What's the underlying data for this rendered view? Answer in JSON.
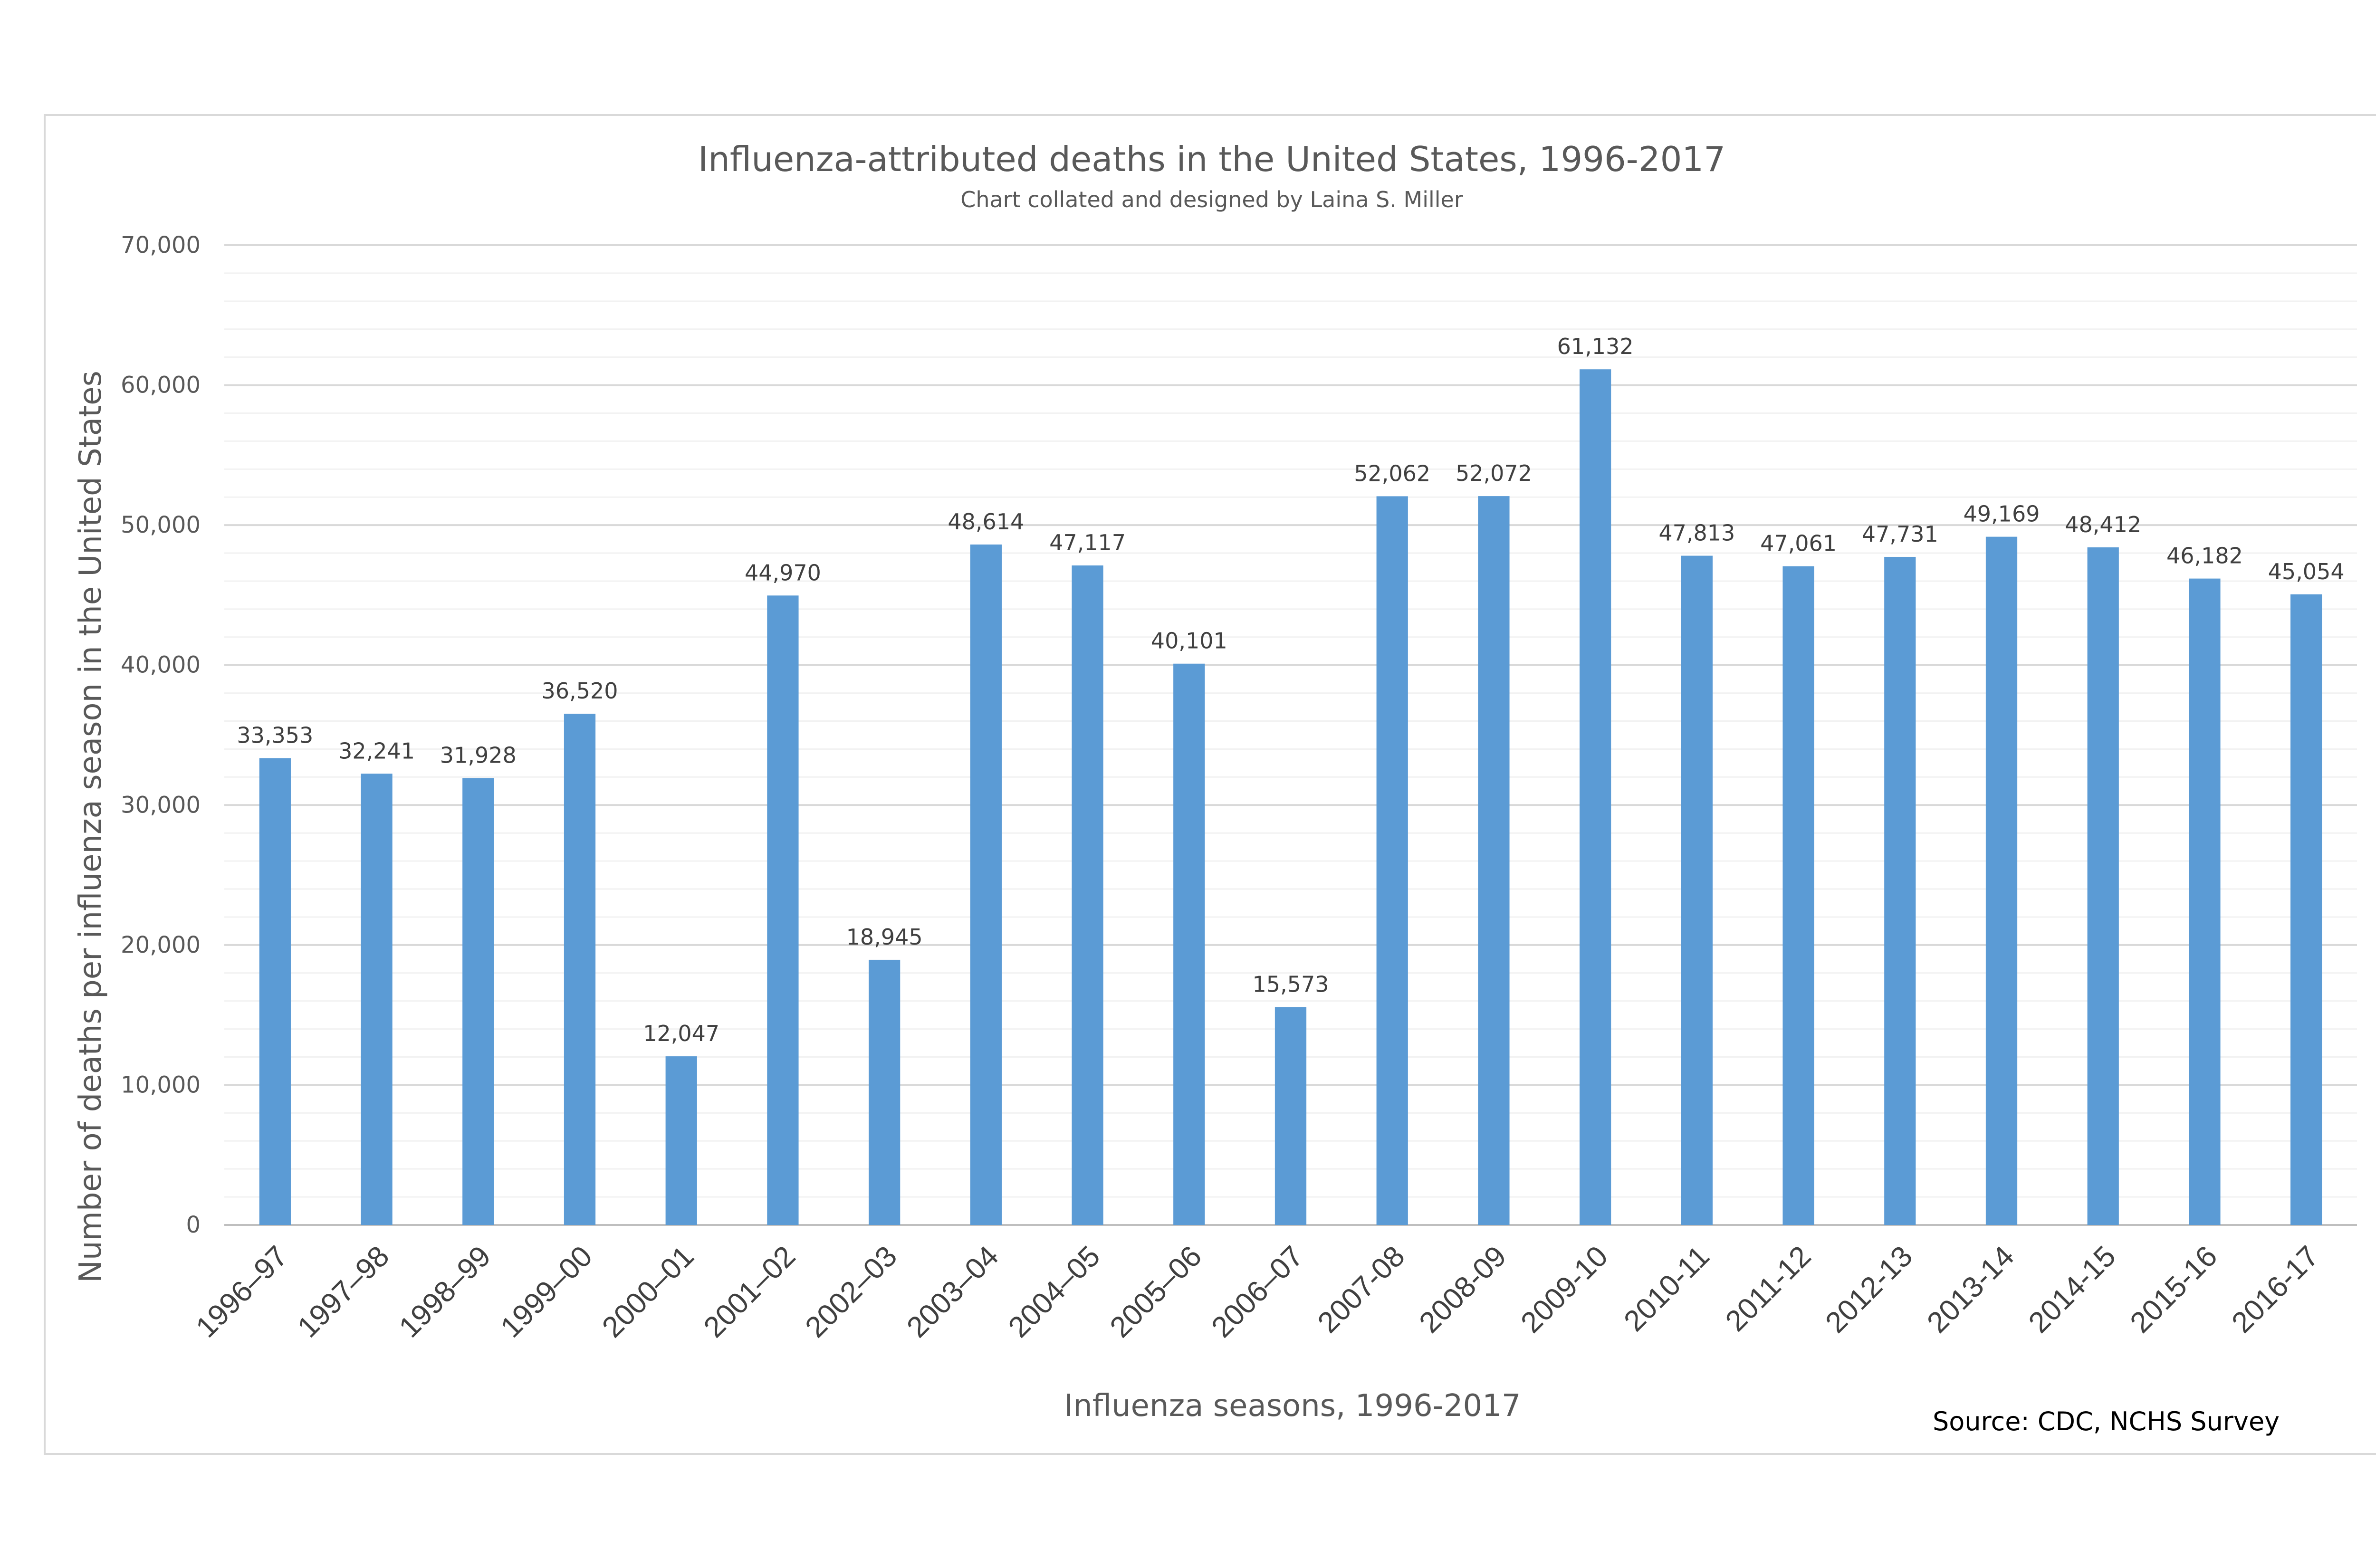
{
  "chart_data": {
    "type": "bar",
    "title": "Influenza-attributed deaths in the United States, 1996-2017",
    "subtitle": "Chart collated and designed by Laina S. Miller",
    "xlabel": "Influenza seasons, 1996-2017",
    "ylabel": "Number of deaths per influenza season in the United States",
    "source": "Source: CDC, NCHS Survey",
    "ylim": [
      0,
      70000
    ],
    "y_ticks": [
      "0",
      "10,000",
      "20,000",
      "30,000",
      "40,000",
      "50,000",
      "60,000",
      "70,000"
    ],
    "categories": [
      "1996–97",
      "1997–98",
      "1998–99",
      "1999–00",
      "2000–01",
      "2001–02",
      "2002–03",
      "2003–04",
      "2004–05",
      "2005–06",
      "2006–07",
      "2007-08",
      "2008-09",
      "2009-10",
      "2010-11",
      "2011-12",
      "2012-13",
      "2013-14",
      "2014-15",
      "2015-16",
      "2016-17"
    ],
    "values": [
      33353,
      32241,
      31928,
      36520,
      12047,
      44970,
      18945,
      48614,
      47117,
      40101,
      15573,
      52062,
      52072,
      61132,
      47813,
      47061,
      47731,
      49169,
      48412,
      46182,
      45054
    ],
    "value_labels": [
      "33,353",
      "32,241",
      "31,928",
      "36,520",
      "12,047",
      "44,970",
      "18,945",
      "48,614",
      "47,117",
      "40,101",
      "15,573",
      "52,062",
      "52,072",
      "61,132",
      "47,813",
      "47,061",
      "47,731",
      "49,169",
      "48,412",
      "46,182",
      "45,054"
    ],
    "grid": true,
    "legend": "none",
    "colors": {
      "bar": "#5b9bd5",
      "gridline": "#d9d9d9",
      "minor_gridline": "#f2f2f2"
    }
  }
}
